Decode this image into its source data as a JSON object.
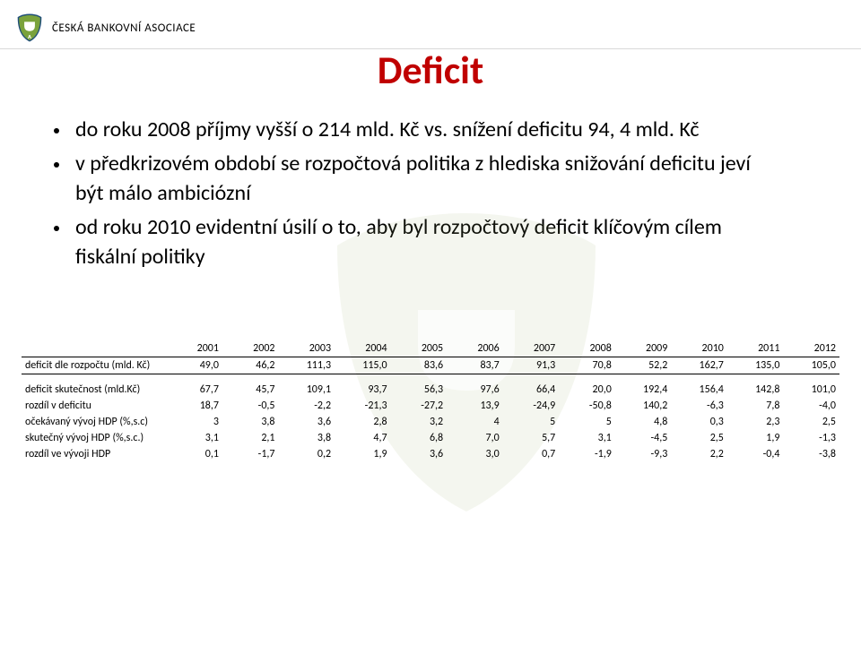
{
  "colors": {
    "title": "#c00000",
    "text": "#000000",
    "divider": "#d9d9d9",
    "border": "#000000",
    "logo_blue": "#1f4e79",
    "logo_green": "#7aa23c",
    "wm_fill": "#9fb36a"
  },
  "header": {
    "org": "ČESKÁ BANKOVNÍ ASOCIACE"
  },
  "title": "Deficit",
  "bullets": [
    "do roku 2008 příjmy vyšší o 214 mld. Kč vs. snížení deficitu 94, 4 mld. Kč",
    "v předkrizovém období se rozpočtová politika z hlediska snižování deficitu jeví být málo ambiciózní",
    "od roku 2010 evidentní úsilí o to, aby byl rozpočtový deficit klíčovým cílem fiskální politiky"
  ],
  "table": {
    "years": [
      "2001",
      "2002",
      "2003",
      "2004",
      "2005",
      "2006",
      "2007",
      "2008",
      "2009",
      "2010",
      "2011",
      "2012"
    ],
    "rows": [
      {
        "label": "deficit dle rozpočtu (mld. Kč)",
        "v": [
          "49,0",
          "46,2",
          "111,3",
          "115,0",
          "83,6",
          "83,7",
          "91,3",
          "70,8",
          "52,2",
          "162,7",
          "135,0",
          "105,0"
        ],
        "toprule": true,
        "botrule": true
      },
      {
        "label": "deficit skutečnost (mld.Kč)",
        "v": [
          "67,7",
          "45,7",
          "109,1",
          "93,7",
          "56,3",
          "97,6",
          "66,4",
          "20,0",
          "192,4",
          "156,4",
          "142,8",
          "101,0"
        ],
        "gap": true
      },
      {
        "label": "rozdíl v deficitu",
        "v": [
          "18,7",
          "-0,5",
          "-2,2",
          "-21,3",
          "-27,2",
          "13,9",
          "-24,9",
          "-50,8",
          "140,2",
          "-6,3",
          "7,8",
          "-4,0"
        ]
      },
      {
        "label": "očekávaný vývoj HDP (%,s.c)",
        "v": [
          "3",
          "3,8",
          "3,6",
          "2,8",
          "3,2",
          "4",
          "5",
          "5",
          "4,8",
          "0,3",
          "2,3",
          "2,5"
        ]
      },
      {
        "label": "skutečný vývoj HDP (%,s.c.)",
        "v": [
          "3,1",
          "2,1",
          "3,8",
          "4,7",
          "6,8",
          "7,0",
          "5,7",
          "3,1",
          "-4,5",
          "2,5",
          "1,9",
          "-1,3"
        ]
      },
      {
        "label": "rozdíl ve vývoji HDP",
        "v": [
          "0,1",
          "-1,7",
          "0,2",
          "1,9",
          "3,6",
          "3,0",
          "0,7",
          "-1,9",
          "-9,3",
          "2,2",
          "-0,4",
          "-3,8"
        ]
      }
    ]
  }
}
